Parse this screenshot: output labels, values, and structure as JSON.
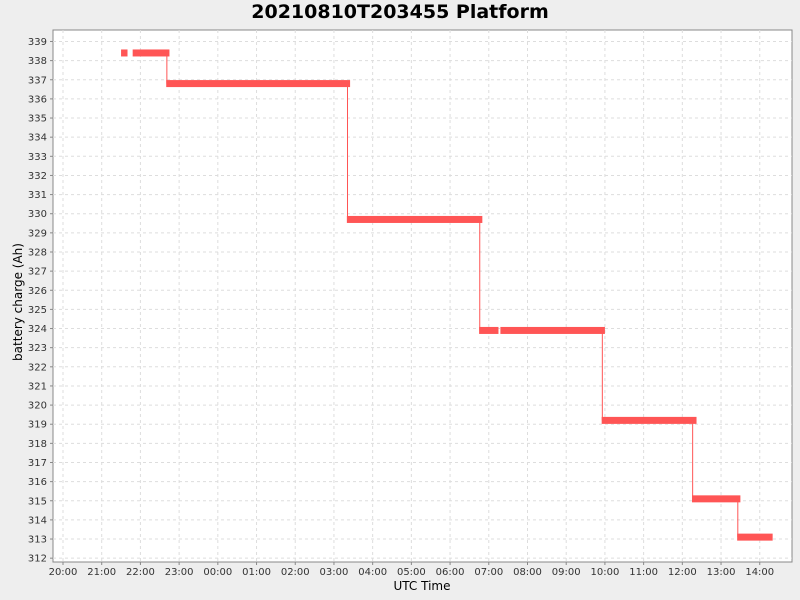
{
  "chart_data": {
    "type": "line",
    "title": "20210810T203455 Platform",
    "xlabel": "UTC Time",
    "ylabel": "battery charge (Ah)",
    "x_range": [
      "20:00",
      "14:50"
    ],
    "ylim": [
      311.8,
      339.6
    ],
    "grid": true,
    "x_ticks": [
      "20:00",
      "21:00",
      "22:00",
      "23:00",
      "00:00",
      "01:00",
      "02:00",
      "03:00",
      "04:00",
      "05:00",
      "06:00",
      "07:00",
      "08:00",
      "09:00",
      "10:00",
      "11:00",
      "12:00",
      "13:00",
      "14:00"
    ],
    "y_ticks": [
      312,
      313,
      314,
      315,
      316,
      317,
      318,
      319,
      320,
      321,
      322,
      323,
      324,
      325,
      326,
      327,
      328,
      329,
      330,
      331,
      332,
      333,
      334,
      335,
      336,
      337,
      338,
      339
    ],
    "series_color": "#ff5555",
    "segments": [
      {
        "start": "21:30",
        "end": "21:40",
        "value": 338.4
      },
      {
        "start": "21:48",
        "end": "22:45",
        "value": 338.4
      },
      {
        "start": "22:40",
        "end": "03:25",
        "value": 336.8
      },
      {
        "start": "03:20",
        "end": "06:50",
        "value": 329.7
      },
      {
        "start": "06:45",
        "end": "07:15",
        "value": 323.9
      },
      {
        "start": "07:18",
        "end": "10:00",
        "value": 323.9
      },
      {
        "start": "09:55",
        "end": "12:22",
        "value": 319.2
      },
      {
        "start": "12:15",
        "end": "13:30",
        "value": 315.1
      },
      {
        "start": "13:25",
        "end": "14:20",
        "value": 313.1
      }
    ],
    "transitions": [
      {
        "time": "22:41",
        "from": 338.4,
        "to": 336.8
      },
      {
        "time": "03:21",
        "from": 336.8,
        "to": 329.7
      },
      {
        "time": "06:46",
        "from": 329.7,
        "to": 323.9
      },
      {
        "time": "09:56",
        "from": 323.9,
        "to": 319.2
      },
      {
        "time": "12:16",
        "from": 319.2,
        "to": 315.1
      },
      {
        "time": "13:26",
        "from": 315.1,
        "to": 313.1
      }
    ]
  }
}
